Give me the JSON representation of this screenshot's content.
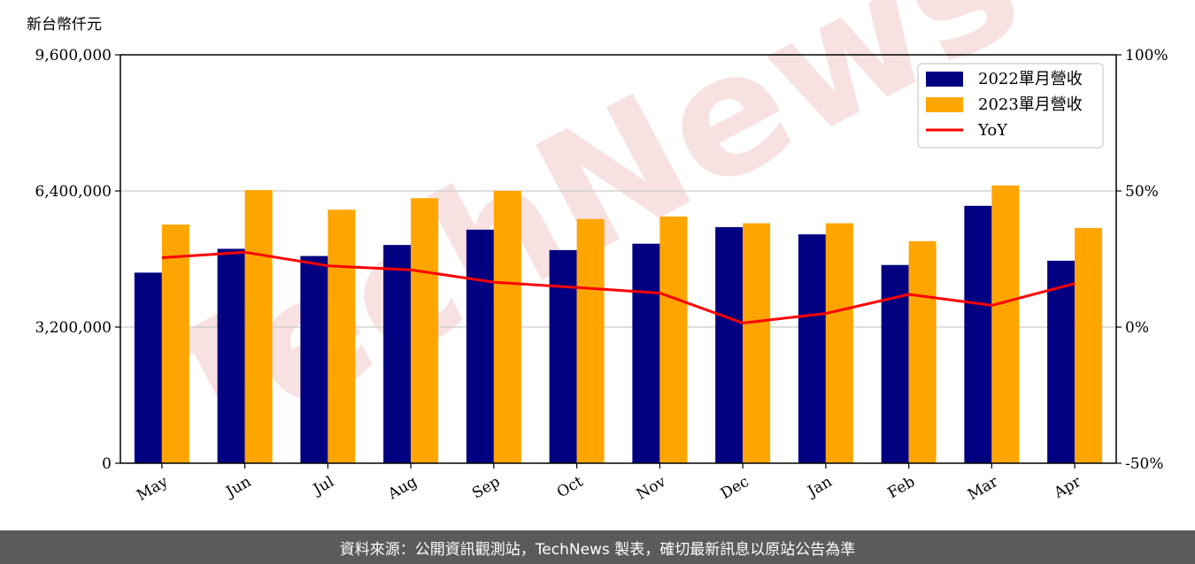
{
  "watermark": "TechNews",
  "footer": {
    "source_text": "資料來源：公開資訊觀測站，TechNews 製表，確切最新訊息以原站公告為準"
  },
  "chart_data": {
    "type": "bar",
    "unit_label": "新台幣仟元",
    "categories": [
      "May",
      "Jun",
      "Jul",
      "Aug",
      "Sep",
      "Oct",
      "Nov",
      "Dec",
      "Jan",
      "Feb",
      "Mar",
      "Apr"
    ],
    "series": [
      {
        "name": "2022單月營收",
        "type": "bar",
        "axis": "left",
        "color": "#000080",
        "values": [
          4480000,
          5040000,
          4870000,
          5130000,
          5490000,
          5010000,
          5160000,
          5550000,
          5380000,
          4660000,
          6050000,
          4760000
        ]
      },
      {
        "name": "2023單月營收",
        "type": "bar",
        "axis": "left",
        "color": "#ffa500",
        "values": [
          5610000,
          6420000,
          5960000,
          6230000,
          6400000,
          5740000,
          5800000,
          5640000,
          5640000,
          5220000,
          6530000,
          5530000
        ]
      },
      {
        "name": "YoY",
        "type": "line",
        "axis": "right",
        "color": "#ff0000",
        "values": [
          25.5,
          27.5,
          22.5,
          21.0,
          16.5,
          14.5,
          12.5,
          1.5,
          5.0,
          12.0,
          8.0,
          16.0
        ]
      }
    ],
    "y_left": {
      "min": 0,
      "max": 9600000,
      "ticks": [
        0,
        3200000,
        6400000,
        9600000
      ],
      "tick_labels": [
        "0",
        "3,200,000",
        "6,400,000",
        "9,600,000"
      ]
    },
    "y_right": {
      "min": -50,
      "max": 100,
      "ticks": [
        -50,
        0,
        50,
        100
      ],
      "tick_labels": [
        "-50%",
        "0%",
        "50%",
        "100%"
      ]
    },
    "grid": "horizontal",
    "legend_position": "top-right"
  }
}
